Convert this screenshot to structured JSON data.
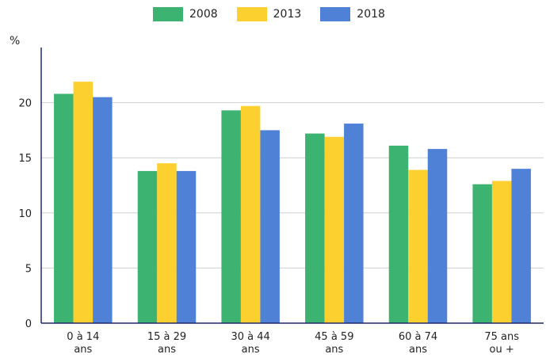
{
  "chart_data": {
    "type": "bar",
    "ylabel": "%",
    "ylim": [
      0,
      25
    ],
    "yticks": [
      0,
      5,
      10,
      15,
      20
    ],
    "categories": [
      [
        "0 à 14",
        "ans"
      ],
      [
        "15 à 29",
        "ans"
      ],
      [
        "30 à 44",
        "ans"
      ],
      [
        "45 à 59",
        "ans"
      ],
      [
        "60 à 74",
        "ans"
      ],
      [
        "75 ans",
        "ou +"
      ]
    ],
    "series": [
      {
        "name": "2008",
        "color": "#3cb371",
        "values": [
          20.8,
          13.8,
          19.3,
          17.2,
          16.1,
          12.6
        ]
      },
      {
        "name": "2013",
        "color": "#fcd02e",
        "values": [
          21.9,
          14.5,
          19.7,
          16.9,
          13.9,
          12.9
        ]
      },
      {
        "name": "2018",
        "color": "#4f82d6",
        "values": [
          20.5,
          13.8,
          17.5,
          18.1,
          15.8,
          14.0
        ]
      }
    ],
    "grid": true,
    "legend": "top"
  }
}
